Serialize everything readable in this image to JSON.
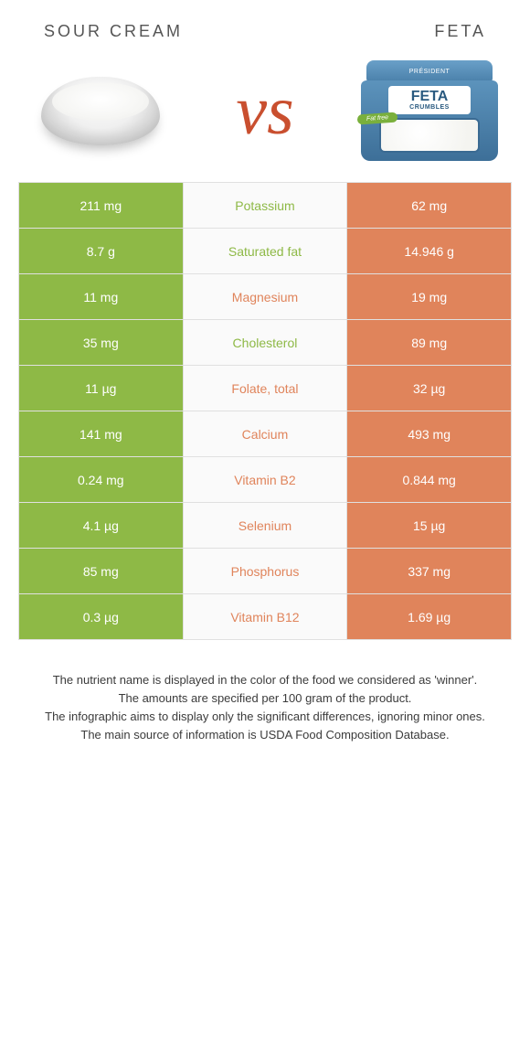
{
  "header": {
    "left_title": "SOUR CREAM",
    "right_title": "FETA",
    "vs": "vs"
  },
  "feta_pkg": {
    "brand": "PRÉSIDENT",
    "name_big": "FETA",
    "name_small": "CRUMBLES",
    "badge": "Fat free"
  },
  "colors": {
    "green": "#8eb946",
    "orange": "#e0845b",
    "vs_color": "#c94f2f"
  },
  "nutrients": [
    {
      "label": "Potassium",
      "left": "211 mg",
      "right": "62 mg",
      "winner": "left"
    },
    {
      "label": "Saturated fat",
      "left": "8.7 g",
      "right": "14.946 g",
      "winner": "left"
    },
    {
      "label": "Magnesium",
      "left": "11 mg",
      "right": "19 mg",
      "winner": "right"
    },
    {
      "label": "Cholesterol",
      "left": "35 mg",
      "right": "89 mg",
      "winner": "left"
    },
    {
      "label": "Folate, total",
      "left": "11 µg",
      "right": "32 µg",
      "winner": "right"
    },
    {
      "label": "Calcium",
      "left": "141 mg",
      "right": "493 mg",
      "winner": "right"
    },
    {
      "label": "Vitamin B2",
      "left": "0.24 mg",
      "right": "0.844 mg",
      "winner": "right"
    },
    {
      "label": "Selenium",
      "left": "4.1 µg",
      "right": "15 µg",
      "winner": "right"
    },
    {
      "label": "Phosphorus",
      "left": "85 mg",
      "right": "337 mg",
      "winner": "right"
    },
    {
      "label": "Vitamin B12",
      "left": "0.3 µg",
      "right": "1.69 µg",
      "winner": "right"
    }
  ],
  "footer": {
    "line1": "The nutrient name is displayed in the color of the food we considered as 'winner'.",
    "line2": "The amounts are specified per 100 gram of the product.",
    "line3": "The infographic aims to display only the significant differences, ignoring minor ones.",
    "line4": "The main source of information is USDA Food Composition Database."
  }
}
